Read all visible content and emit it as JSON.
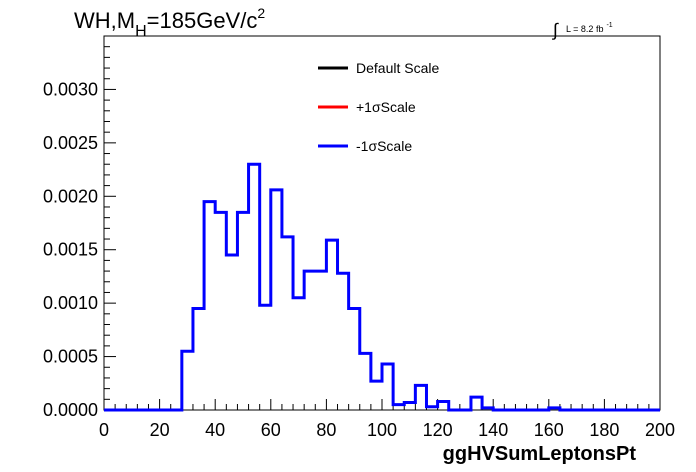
{
  "chart_data": {
    "type": "step",
    "title_main": "WH,M",
    "title_sub": "H",
    "title_rest": "=185GeV/c",
    "title_sup": "2",
    "lumi_text": "L = 8.2 fb",
    "lumi_sup": "-1",
    "integral_symbol": "∫",
    "xlabel": "ggHVSumLeptonsPt",
    "xlim": [
      0,
      200
    ],
    "ylim": [
      0,
      0.0035
    ],
    "x_ticks": [
      "0",
      "20",
      "40",
      "60",
      "80",
      "100",
      "120",
      "140",
      "160",
      "180",
      "200"
    ],
    "y_ticks": [
      "0.0000",
      "0.0005",
      "0.0010",
      "0.0015",
      "0.0020",
      "0.0025",
      "0.0030"
    ],
    "y_tick_values": [
      0,
      0.0005,
      0.001,
      0.0015,
      0.002,
      0.0025,
      0.003
    ],
    "bin_width": 4,
    "legend": [
      {
        "name": "Default Scale",
        "color": "#000000"
      },
      {
        "name": "+1σScale",
        "color": "#ff0000"
      },
      {
        "name": "-1σScale",
        "color": "#0000ff"
      }
    ],
    "series_color": "#0000ff",
    "bins_low_edges": [
      0,
      4,
      8,
      12,
      16,
      20,
      24,
      28,
      32,
      36,
      40,
      44,
      48,
      52,
      56,
      60,
      64,
      68,
      72,
      76,
      80,
      84,
      88,
      92,
      96,
      100,
      104,
      108,
      112,
      116,
      120,
      124,
      128,
      132,
      136,
      140,
      144,
      148,
      152,
      156,
      160,
      164,
      168,
      172,
      176,
      180,
      184,
      188,
      192,
      196
    ],
    "values": [
      0,
      0,
      0,
      0,
      0,
      0,
      0,
      0.00055,
      0.00095,
      0.00195,
      0.00185,
      0.00145,
      0.00185,
      0.0023,
      0.00098,
      0.00206,
      0.00162,
      0.00105,
      0.0013,
      0.0013,
      0.00159,
      0.00128,
      0.00095,
      0.00053,
      0.00027,
      0.00043,
      5e-05,
      7e-05,
      0.00023,
      3e-05,
      8e-05,
      0,
      0,
      0.00012,
      2e-05,
      0,
      0,
      0,
      0,
      0,
      2e-05,
      0,
      0,
      0,
      0,
      0,
      0,
      0,
      0,
      0
    ]
  }
}
